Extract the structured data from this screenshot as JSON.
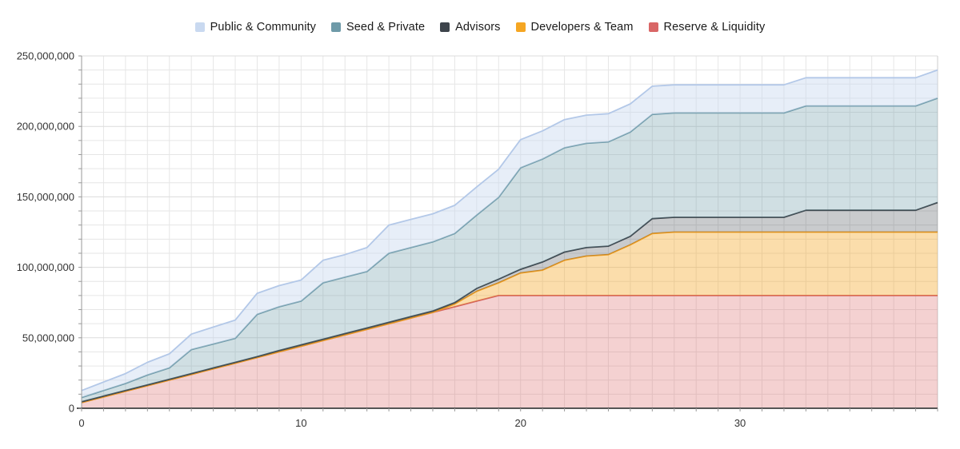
{
  "chart_data": {
    "type": "area",
    "stacked": true,
    "title": "",
    "xlabel": "",
    "ylabel": "",
    "x_unit": "month",
    "xlim": [
      0,
      39
    ],
    "ylim": [
      0,
      250000000
    ],
    "grid": true,
    "legend_position": "top-center",
    "x_minor_tick_every": 1,
    "y_minor_tick_every": 10000000,
    "x_ticks": [
      {
        "value": 0,
        "label": "0"
      },
      {
        "value": 10,
        "label": "10"
      },
      {
        "value": 20,
        "label": "20"
      },
      {
        "value": 30,
        "label": "30"
      }
    ],
    "y_ticks": [
      {
        "value": 0,
        "label": "0"
      },
      {
        "value": 50000000,
        "label": "50,000,000"
      },
      {
        "value": 100000000,
        "label": "100,000,000"
      },
      {
        "value": 150000000,
        "label": "150,000,000"
      },
      {
        "value": 200000000,
        "label": "200,000,000"
      },
      {
        "value": 250000000,
        "label": "250,000,000"
      }
    ],
    "legend_order_top_to_bottom": [
      "Public & Community",
      "Seed & Private",
      "Advisors",
      "Developers & Team",
      "Reserve & Liquidity"
    ],
    "series_bottom_to_top": [
      {
        "name": "Reserve & Liquidity",
        "legend_color": "#d96666",
        "stroke": "#d25f5f",
        "fill": "rgba(217,102,102,0.30)",
        "values": [
          4000000,
          8000000,
          12000000,
          16000000,
          20000000,
          24000000,
          28000000,
          32000000,
          36000000,
          40000000,
          44000000,
          48000000,
          52000000,
          56000000,
          60000000,
          64000000,
          68000000,
          72000000,
          76000000,
          80000000,
          80000000,
          80000000,
          80000000,
          80000000,
          80000000,
          80000000,
          80000000,
          80000000,
          80000000,
          80000000,
          80000000,
          80000000,
          80000000,
          80000000,
          80000000,
          80000000,
          80000000,
          80000000,
          80000000,
          80000000
        ]
      },
      {
        "name": "Developers & Team",
        "legend_color": "#f5a623",
        "stroke": "#f09d1f",
        "fill": "rgba(245,166,35,0.38)",
        "values": [
          0,
          0,
          0,
          0,
          0,
          0,
          0,
          0,
          0,
          0,
          0,
          0,
          0,
          0,
          0,
          0,
          0,
          2000000,
          7000000,
          9000000,
          16000000,
          18000000,
          25000000,
          28000000,
          29000000,
          36000000,
          44000000,
          45000000,
          45000000,
          45000000,
          45000000,
          45000000,
          45000000,
          45000000,
          45000000,
          45000000,
          45000000,
          45000000,
          45000000,
          45000000
        ]
      },
      {
        "name": "Advisors",
        "legend_color": "#3d444b",
        "stroke": "#3d444b",
        "fill": "rgba(61,68,75,0.28)",
        "values": [
          600000,
          600000,
          600000,
          600000,
          600000,
          600000,
          600000,
          600000,
          600000,
          1000000,
          1000000,
          1000000,
          1000000,
          1000000,
          1000000,
          1000000,
          1000000,
          1000000,
          2000000,
          2600000,
          2600000,
          5800000,
          5800000,
          6000000,
          6000000,
          6000000,
          10500000,
          10500000,
          10500000,
          10500000,
          10500000,
          10500000,
          10500000,
          15500000,
          15500000,
          15500000,
          15500000,
          15500000,
          15500000,
          21000000
        ]
      },
      {
        "name": "Seed & Private",
        "legend_color": "#6e9aa8",
        "stroke": "#6e9aa8",
        "fill": "rgba(110,154,168,0.32)",
        "values": [
          3000000,
          4000000,
          5000000,
          7000000,
          8000000,
          17000000,
          17000000,
          17000000,
          30000000,
          31000000,
          31000000,
          40000000,
          40000000,
          40000000,
          49000000,
          49000000,
          49000000,
          49000000,
          52000000,
          58000000,
          72000000,
          73000000,
          74000000,
          74000000,
          74000000,
          74000000,
          74000000,
          74000000,
          74000000,
          74000000,
          74000000,
          74000000,
          74000000,
          74000000,
          74000000,
          74000000,
          74000000,
          74000000,
          74000000,
          74000000
        ]
      },
      {
        "name": "Public & Community",
        "legend_color": "#c9d9f0",
        "stroke": "#b3c8e8",
        "fill": "rgba(201,217,240,0.45)",
        "values": [
          5000000,
          6000000,
          7000000,
          9000000,
          10000000,
          11000000,
          12000000,
          13000000,
          15000000,
          15000000,
          15000000,
          16000000,
          16000000,
          17000000,
          20000000,
          20000000,
          20000000,
          20000000,
          20000000,
          20000000,
          20000000,
          20000000,
          20000000,
          20000000,
          20000000,
          20000000,
          20000000,
          20000000,
          20000000,
          20000000,
          20000000,
          20000000,
          20000000,
          20000000,
          20000000,
          20000000,
          20000000,
          20000000,
          20000000,
          20000000
        ]
      }
    ]
  }
}
